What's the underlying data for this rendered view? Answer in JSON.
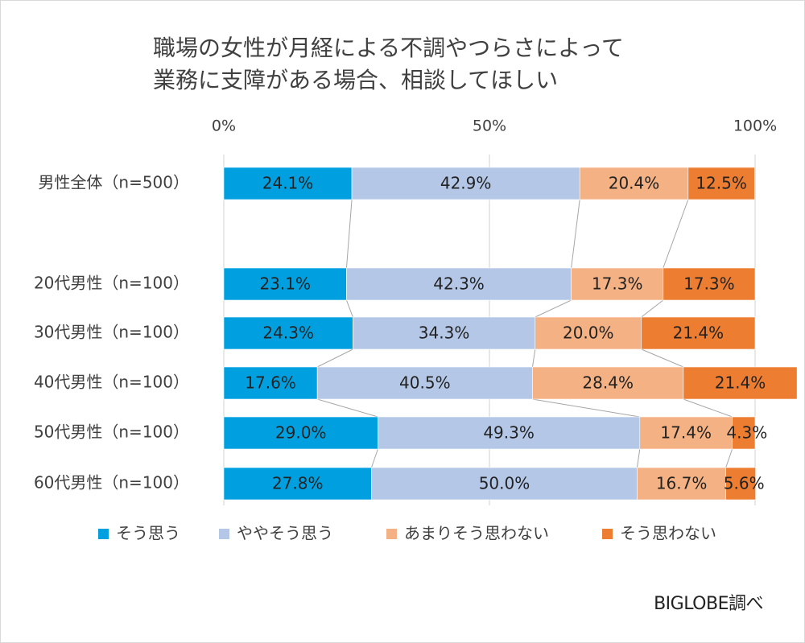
{
  "chart_data": {
    "type": "bar",
    "orientation": "horizontal",
    "stacked": "100%",
    "title_lines": [
      "職場の女性が月経による不調やつらさによって",
      "業務に支障がある場合、相談してほしい"
    ],
    "xlim": [
      0,
      100
    ],
    "x_ticks": [
      "0%",
      "50%",
      "100%"
    ],
    "categories": [
      "男性全体（n=500）",
      "20代男性（n=100）",
      "30代男性（n=100）",
      "40代男性（n=100）",
      "50代男性（n=100）",
      "60代男性（n=100）"
    ],
    "series": [
      {
        "name": "そう思う",
        "color": "#00a0e0",
        "values": [
          24.1,
          23.1,
          24.3,
          17.6,
          29.0,
          27.8
        ],
        "labels": [
          "24.1%",
          "23.1%",
          "24.3%",
          "17.6%",
          "29.0%",
          "27.8%"
        ]
      },
      {
        "name": "ややそう思う",
        "color": "#b4c7e7",
        "values": [
          42.9,
          42.3,
          34.3,
          40.5,
          49.3,
          50.0
        ],
        "labels": [
          "42.9%",
          "42.3%",
          "34.3%",
          "40.5%",
          "49.3%",
          "50.0%"
        ]
      },
      {
        "name": "あまりそう思わない",
        "color": "#f4b183",
        "values": [
          20.4,
          17.3,
          20.0,
          28.4,
          17.4,
          16.7
        ],
        "labels": [
          "20.4%",
          "17.3%",
          "20.0%",
          "28.4%",
          "17.4%",
          "16.7%"
        ]
      },
      {
        "name": "そう思わない",
        "color": "#ed7d31",
        "values": [
          12.5,
          17.3,
          21.4,
          21.4,
          4.3,
          5.6
        ],
        "labels": [
          "12.5%",
          "17.3%",
          "21.4%",
          "21.4%",
          "4.3%",
          "5.6%"
        ]
      }
    ],
    "grid": true,
    "series_lines": true,
    "legend_position": "bottom"
  },
  "credit": "BIGLOBE調べ"
}
